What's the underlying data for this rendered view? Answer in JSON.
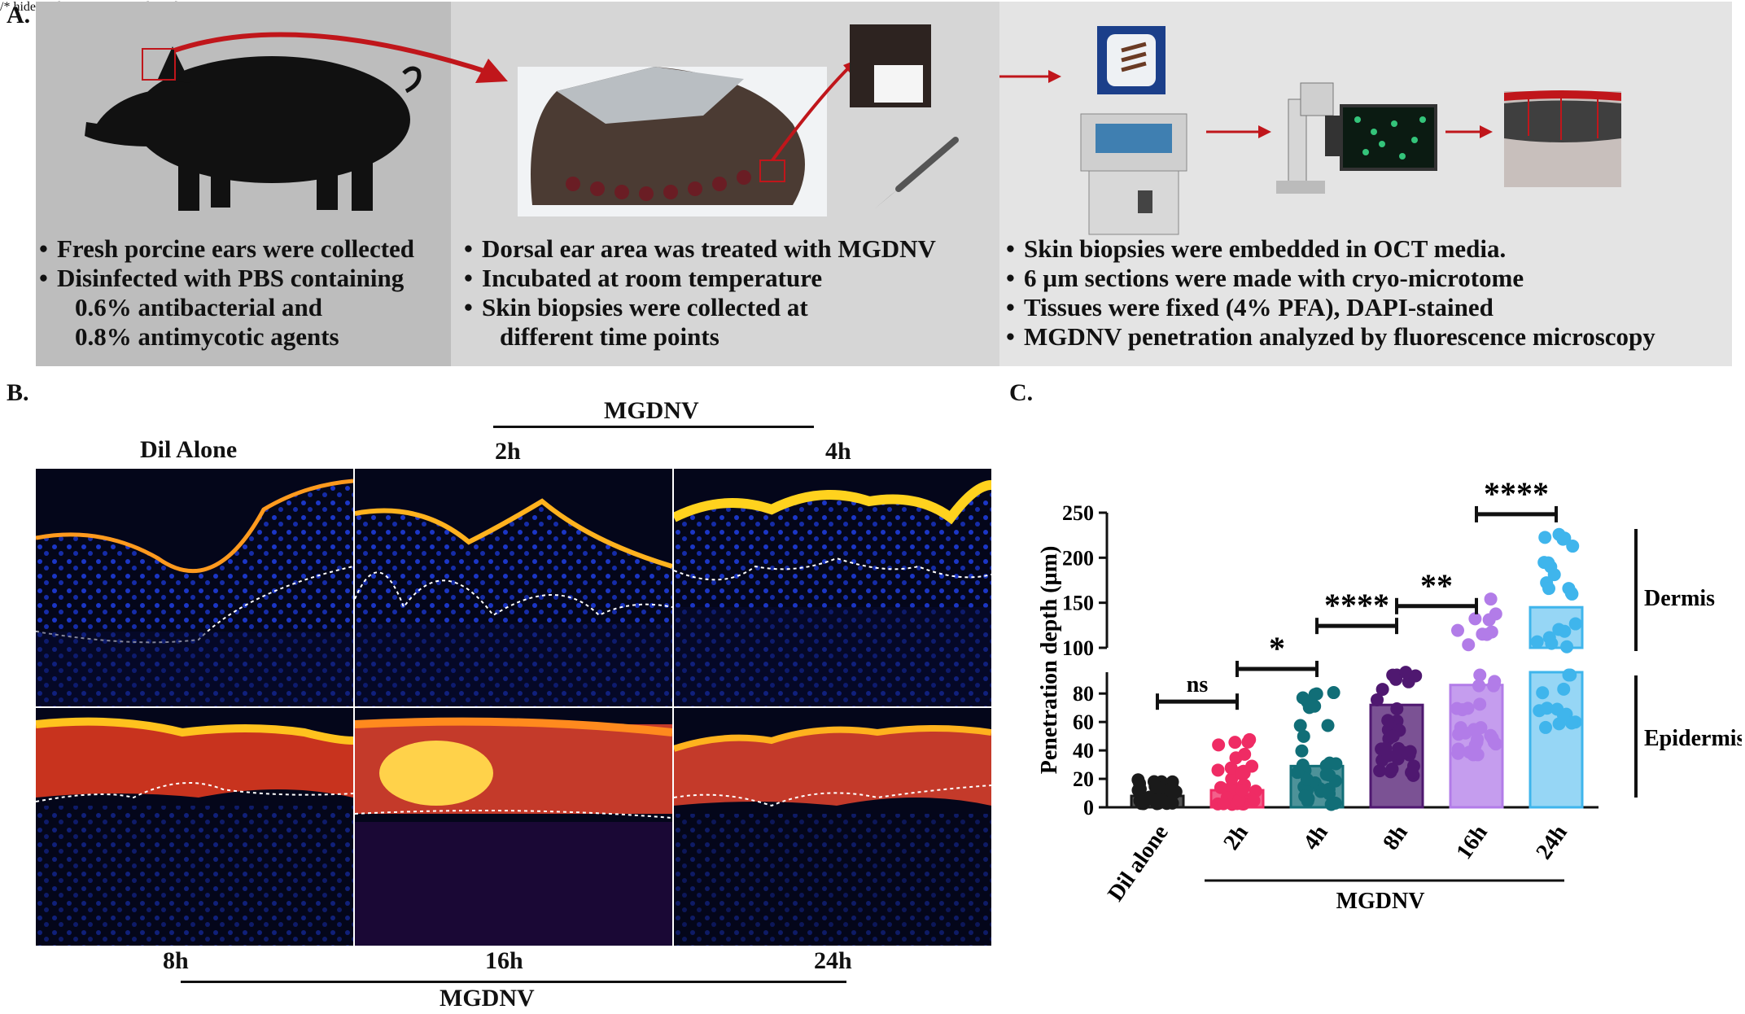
{
  "panel_a": {
    "letter": "A.",
    "col1_bullets": [
      "Fresh porcine ears were collected",
      "Disinfected with PBS containing",
      "0.6% antibacterial and",
      "0.8% antimycotic agents"
    ],
    "col2_bullets": [
      "Dorsal ear area was treated with MGDNV",
      "Incubated at room temperature",
      "Skin biopsies were collected at",
      "different time points"
    ],
    "col3_bullets": [
      "Skin biopsies were embedded in OCT media.",
      "6 µm sections were made with cryo-microtome",
      "Tissues were fixed (4% PFA), DAPI-stained",
      "MGDNV penetration analyzed by fluorescence microscopy"
    ]
  },
  "panel_b": {
    "letter": "B.",
    "group_label_top": "MGDNV",
    "group_label_bottom": "MGDNV",
    "top_labels": [
      "Dil Alone",
      "2h",
      "4h"
    ],
    "bottom_labels": [
      "8h",
      "16h",
      "24h"
    ]
  },
  "panel_c": {
    "letter": "C.",
    "chart_data": {
      "type": "bar",
      "ylabel": "Penetration depth (µm)",
      "categories": [
        "Dil alone",
        "2h",
        "4h",
        "8h",
        "16h",
        "24h"
      ],
      "values": [
        8,
        12,
        29,
        72,
        86,
        145
      ],
      "colors": [
        "#1a1a1a",
        "#ef2b64",
        "#116e77",
        "#4f1870",
        "#b27ce8",
        "#3fb5ec"
      ],
      "y_ticks_lower": [
        0,
        20,
        40,
        60,
        80
      ],
      "y_ticks_upper": [
        100,
        150,
        200,
        250
      ],
      "axis_break": [
        95,
        100
      ],
      "group_label": "MGDNV",
      "significance": [
        {
          "label": "ns",
          "from": "Dil alone",
          "to": "2h"
        },
        {
          "label": "*",
          "from": "2h",
          "to": "4h"
        },
        {
          "label": "****",
          "from": "4h",
          "to": "8h"
        },
        {
          "label": "**",
          "from": "8h",
          "to": "16h"
        },
        {
          "label": "****",
          "from": "16h",
          "to": "24h"
        }
      ],
      "region_labels": [
        "Dermis",
        "Epidermis"
      ]
    }
  }
}
